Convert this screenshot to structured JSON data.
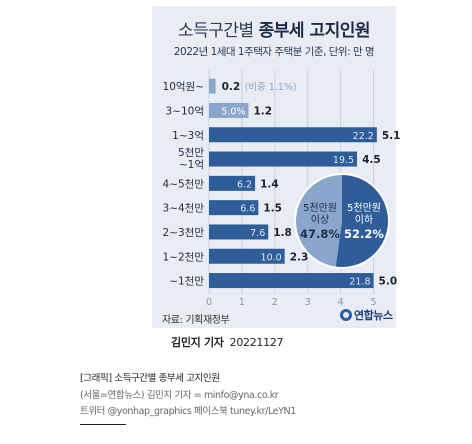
{
  "chart_data": {
    "type": "bar",
    "orientation": "horizontal",
    "title": "소득구간별 종부세 고지인원",
    "title_light": "소득구간별",
    "title_bold": "종부세 고지인원",
    "subtitle": "2022년 1세대 1주택자 주택분 기준, 단위: 만 명",
    "categories": [
      "10억원~",
      "3~10억",
      "1~3억",
      "5천만\n~1억",
      "4~5천만",
      "3~4천만",
      "2~3천만",
      "1~2천만",
      "~1천만"
    ],
    "values": [
      0.2,
      1.2,
      5.1,
      4.5,
      1.4,
      1.5,
      1.8,
      2.3,
      5.0
    ],
    "value_labels": [
      "0.2",
      "1.2",
      "5.1",
      "4.5",
      "1.4",
      "1.5",
      "1.8",
      "2.3",
      "5.0"
    ],
    "percent_labels": [
      "(비중 1.1%)",
      "5.0%",
      "22.2",
      "19.5",
      "6.2",
      "6.6",
      "7.6",
      "10.0",
      "21.8"
    ],
    "xlim": [
      0,
      5.5
    ],
    "x_ticks": [
      "0",
      "1",
      "2",
      "3",
      "4",
      "5"
    ],
    "colors": {
      "dark": "#2e5d9a",
      "light": "#8aa6cc",
      "label_dark": "#1a2236",
      "label_light": "#8aa6cc",
      "grid": "#c8d2e0"
    },
    "pie": {
      "type": "pie",
      "slices": [
        {
          "label_line1": "5천만원",
          "label_line2": "이상",
          "value": 47.8,
          "value_label": "47.8%",
          "color": "#8aa6cc"
        },
        {
          "label_line1": "5천만원",
          "label_line2": "이하",
          "value": 52.2,
          "value_label": "52.2%",
          "color": "#2e5d9a"
        }
      ]
    }
  },
  "source": "자료: 기획재정부",
  "logo_text": "연합뉴스",
  "byline": {
    "name": "김민지 기자",
    "date": "20221127"
  },
  "captions": {
    "line1": "[그래픽] 소득구간별 종부세 고지인원",
    "line2": "(서울=연합뉴스) 김민지 기자 = minfo@yna.co.kr",
    "line3": "트위터 @yonhap_graphics 페이스북 tuney.kr/LeYN1"
  }
}
